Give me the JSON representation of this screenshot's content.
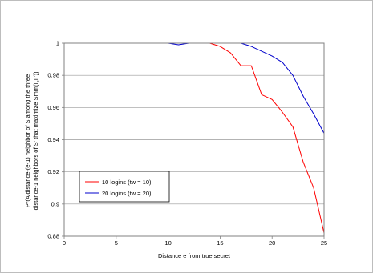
{
  "chart_data": {
    "type": "line",
    "title": "",
    "xlabel": "Distance e from true secret",
    "ylabel_line1": "Pr(A distance-(e-1) neighbor of S among the three",
    "ylabel_line2": "distance-1 neighbors of S' that maximize Smm(Γ,Γ'))",
    "xlim": [
      0,
      25
    ],
    "ylim": [
      0.88,
      1.0
    ],
    "x_ticks": [
      0,
      5,
      10,
      15,
      20,
      25
    ],
    "x_tick_labels": [
      "0",
      "5",
      "10",
      "15",
      "20",
      "25"
    ],
    "y_ticks": [
      0.88,
      0.9,
      0.92,
      0.94,
      0.96,
      0.98,
      1.0
    ],
    "y_tick_labels": [
      "0.88",
      "0.9",
      "0.92",
      "0.94",
      "0.96",
      "0.98",
      "1"
    ],
    "grid": "horizontal",
    "legend_position": "lower-left",
    "series": [
      {
        "name": "10 logins (tw = 10)",
        "color": "#ff0000",
        "x": [
          1,
          10,
          11,
          12,
          13,
          14,
          15,
          16,
          17,
          18,
          19,
          20,
          21,
          22,
          23,
          24,
          25
        ],
        "y": [
          1.0,
          1.0,
          1.0,
          1.0,
          1.0,
          1.0,
          0.998,
          0.994,
          0.986,
          0.986,
          0.968,
          0.965,
          0.957,
          0.948,
          0.926,
          0.91,
          0.882
        ]
      },
      {
        "name": "20 logins (tw = 20)",
        "color": "#0000cc",
        "x": [
          1,
          10,
          11,
          12,
          13,
          14,
          15,
          16,
          17,
          18,
          19,
          20,
          21,
          22,
          23,
          24,
          25
        ],
        "y": [
          1.0,
          1.0,
          0.999,
          1.0,
          1.0,
          1.0,
          1.0,
          1.0,
          1.0,
          0.998,
          0.995,
          0.992,
          0.988,
          0.98,
          0.967,
          0.956,
          0.944
        ]
      }
    ]
  }
}
